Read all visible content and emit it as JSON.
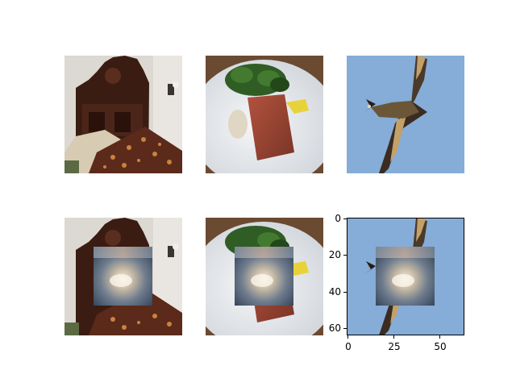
{
  "figure": {
    "rows": [
      "original",
      "occluded"
    ],
    "columns": [
      "bedroom",
      "food",
      "bird"
    ]
  },
  "axes": {
    "y_ticks": [
      "0",
      "20",
      "40",
      "60"
    ],
    "x_ticks": [
      "0",
      "25",
      "50"
    ],
    "y_values": [
      0,
      20,
      40,
      60
    ],
    "x_values": [
      0,
      25,
      50
    ],
    "range": [
      0,
      64
    ]
  },
  "colors": {
    "sky": "#86acd8",
    "plate": "#e8ecf0",
    "bed_wood": "#3a1c12",
    "blur_patch": "#7d8a99"
  }
}
